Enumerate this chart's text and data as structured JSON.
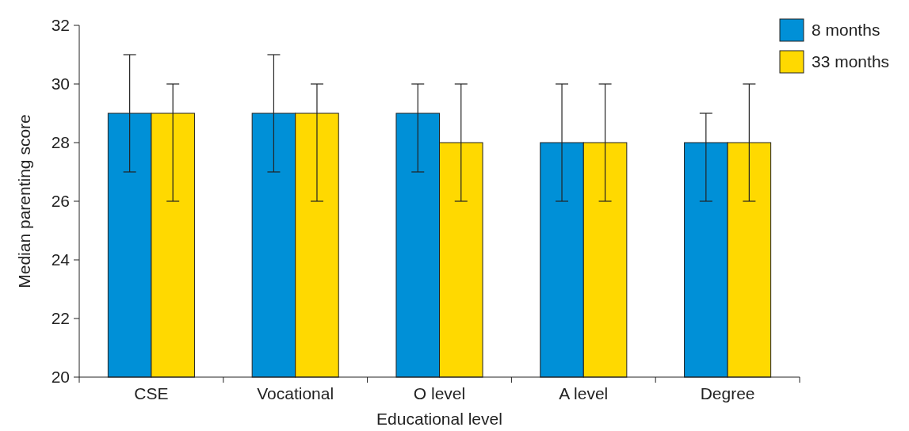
{
  "chart_data": {
    "type": "bar",
    "xlabel": "Educational level",
    "ylabel": "Median parenting score",
    "categories": [
      "CSE",
      "Vocational",
      "O level",
      "A level",
      "Degree"
    ],
    "ylim": [
      20,
      32
    ],
    "yticks": [
      20,
      22,
      24,
      26,
      28,
      30,
      32
    ],
    "legend": "top right",
    "grid": false,
    "series": [
      {
        "name": "8 months",
        "color": "#0090d7",
        "values": [
          29,
          29,
          29,
          28,
          28
        ],
        "errors": [
          [
            27,
            31
          ],
          [
            27,
            31
          ],
          [
            27,
            30
          ],
          [
            26,
            30
          ],
          [
            26,
            29
          ]
        ]
      },
      {
        "name": "33 months",
        "color": "#ffd900",
        "values": [
          29,
          29,
          28,
          28,
          28
        ],
        "errors": [
          [
            26,
            30
          ],
          [
            26,
            30
          ],
          [
            26,
            30
          ],
          [
            26,
            30
          ],
          [
            26,
            30
          ]
        ]
      }
    ]
  }
}
